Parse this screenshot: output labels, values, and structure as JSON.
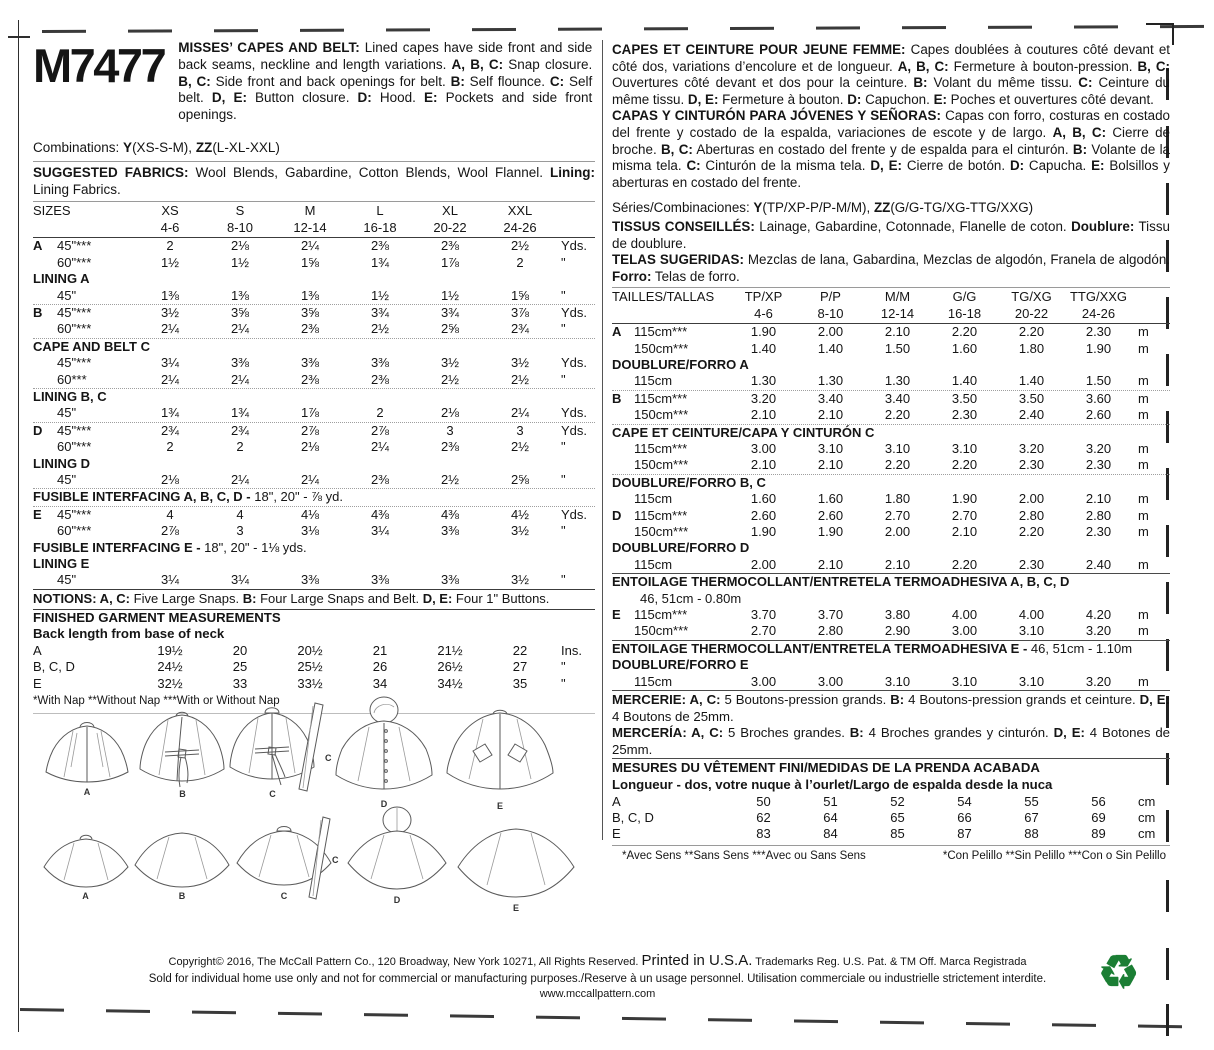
{
  "colors": {
    "recycle_green": "#1b7e34",
    "ink": "#151515"
  },
  "left": {
    "sku": "M7477",
    "header_desc": [
      {
        "b": "MISSES’ CAPES AND BELT:"
      },
      {
        "t": " Lined capes have side front and side back seams, neckline and length variations. "
      },
      {
        "b": "A, B, C:"
      },
      {
        "t": " Snap closure. "
      },
      {
        "b": "B, C:"
      },
      {
        "t": " Side front and back openings for belt. "
      },
      {
        "b": "B:"
      },
      {
        "t": " Self flounce. "
      },
      {
        "b": "C:"
      },
      {
        "t": " Self belt. "
      },
      {
        "b": "D, E:"
      },
      {
        "t": " Button closure. "
      },
      {
        "b": "D:"
      },
      {
        "t": " Hood. "
      },
      {
        "b": "E:"
      },
      {
        "t": " Pockets and side front openings."
      }
    ],
    "combinations": [
      {
        "t": "Combinations: "
      },
      {
        "b": "Y"
      },
      {
        "t": "(XS-S-M), "
      },
      {
        "b": "ZZ"
      },
      {
        "t": "(L-XL-XXL)"
      }
    ],
    "fabrics": [
      {
        "b": "SUGGESTED FABRICS:"
      },
      {
        "t": " Wool Blends, Gabardine, Cotton Blends, Wool Flannel. "
      },
      {
        "b": "Lining:"
      },
      {
        "t": " Lining Fabrics."
      }
    ],
    "table": {
      "header": {
        "title": "SIZES",
        "sizes": [
          "XS",
          "S",
          "M",
          "L",
          "XL",
          "XXL"
        ],
        "ranges": [
          "4-6",
          "8-10",
          "12-14",
          "16-18",
          "20-22",
          "24-26"
        ]
      },
      "rows": [
        {
          "k": "data",
          "letter": "A",
          "label": "45\"***",
          "v": [
            "2",
            "2⅛",
            "2¼",
            "2⅜",
            "2⅜",
            "2½"
          ],
          "unit": "Yds."
        },
        {
          "k": "data",
          "label": "60\"***",
          "v": [
            "1½",
            "1½",
            "1⅝",
            "1¾",
            "1⅞",
            "2"
          ],
          "unit": "\""
        },
        {
          "k": "sec",
          "rich": [
            {
              "b": "LINING A"
            }
          ]
        },
        {
          "k": "data",
          "label": "45\"",
          "v": [
            "1⅜",
            "1⅜",
            "1⅜",
            "1½",
            "1½",
            "1⅝"
          ],
          "unit": "\""
        },
        {
          "k": "data",
          "r": "l",
          "letter": "B",
          "label": "45\"***",
          "v": [
            "3½",
            "3⅝",
            "3⅝",
            "3¾",
            "3¾",
            "3⅞"
          ],
          "unit": "Yds."
        },
        {
          "k": "data",
          "label": "60\"***",
          "v": [
            "2¼",
            "2¼",
            "2⅜",
            "2½",
            "2⅝",
            "2¾"
          ],
          "unit": "\""
        },
        {
          "k": "sec",
          "r": "l",
          "rich": [
            {
              "b": "CAPE AND BELT C"
            }
          ]
        },
        {
          "k": "data",
          "label": "45\"***",
          "v": [
            "3¼",
            "3⅜",
            "3⅜",
            "3⅜",
            "3½",
            "3½"
          ],
          "unit": "Yds."
        },
        {
          "k": "data",
          "label": "60***",
          "v": [
            "2¼",
            "2¼",
            "2⅜",
            "2⅜",
            "2½",
            "2½"
          ],
          "unit": "\""
        },
        {
          "k": "sec",
          "r": "l",
          "rich": [
            {
              "b": "LINING B, C"
            }
          ]
        },
        {
          "k": "data",
          "label": "45\"",
          "v": [
            "1¾",
            "1¾",
            "1⅞",
            "2",
            "2⅛",
            "2¼"
          ],
          "unit": "Yds."
        },
        {
          "k": "data",
          "r": "l",
          "letter": "D",
          "label": "45\"***",
          "v": [
            "2¾",
            "2¾",
            "2⅞",
            "2⅞",
            "3",
            "3"
          ],
          "unit": "Yds."
        },
        {
          "k": "data",
          "label": "60\"***",
          "v": [
            "2",
            "2",
            "2⅛",
            "2¼",
            "2⅜",
            "2½"
          ],
          "unit": "\""
        },
        {
          "k": "sec",
          "rich": [
            {
              "b": "LINING D"
            }
          ]
        },
        {
          "k": "data",
          "label": "45\"",
          "v": [
            "2⅛",
            "2¼",
            "2¼",
            "2⅜",
            "2½",
            "2⅝"
          ],
          "unit": "\""
        },
        {
          "k": "sec",
          "r": "l",
          "rich": [
            {
              "b": "FUSIBLE INTERFACING A, B, C, D - "
            },
            {
              "t": "18\", 20\" - ⅞ yd."
            }
          ]
        },
        {
          "k": "data",
          "r": "l",
          "letter": "E",
          "label": "45\"***",
          "v": [
            "4",
            "4",
            "4⅛",
            "4⅜",
            "4⅜",
            "4½"
          ],
          "unit": "Yds."
        },
        {
          "k": "data",
          "label": "60\"***",
          "v": [
            "2⅞",
            "3",
            "3⅛",
            "3¼",
            "3⅜",
            "3½"
          ],
          "unit": "\""
        },
        {
          "k": "sec",
          "rich": [
            {
              "b": "FUSIBLE INTERFACING E - "
            },
            {
              "t": "18\", 20\" - 1⅛ yds."
            }
          ]
        },
        {
          "k": "sec",
          "rich": [
            {
              "b": "LINING E"
            }
          ]
        },
        {
          "k": "data",
          "label": "45\"",
          "v": [
            "3¼",
            "3¼",
            "3⅜",
            "3⅜",
            "3⅜",
            "3½"
          ],
          "unit": "\""
        }
      ]
    },
    "notions": [
      {
        "b": "NOTIONS: A, C:"
      },
      {
        "t": " Five Large Snaps. "
      },
      {
        "b": "B:"
      },
      {
        "t": " Four Large Snaps and Belt. "
      },
      {
        "b": "D, E:"
      },
      {
        "t": " Four 1\" Buttons."
      }
    ],
    "measurements": {
      "heading1": "FINISHED GARMENT MEASUREMENTS",
      "heading2": "Back length from base of neck",
      "rows": [
        {
          "label": "A",
          "v": [
            "19½",
            "20",
            "20½",
            "21",
            "21½",
            "22"
          ],
          "unit": "Ins."
        },
        {
          "label": "B, C, D",
          "v": [
            "24½",
            "25",
            "25½",
            "26",
            "26½",
            "27"
          ],
          "unit": "\""
        },
        {
          "label": "E",
          "v": [
            "32½",
            "33",
            "33½",
            "34",
            "34½",
            "35"
          ],
          "unit": "\""
        }
      ]
    },
    "footnote": "*With Nap **Without Nap ***With or Without Nap"
  },
  "right": {
    "desc_fr": [
      {
        "b": "CAPES ET CEINTURE POUR JEUNE FEMME:"
      },
      {
        "t": " Capes doublées à coutures côté devant et côté dos, variations d’encolure et de longueur. "
      },
      {
        "b": "A, B, C:"
      },
      {
        "t": " Fermeture à bouton-pression. "
      },
      {
        "b": "B, C:"
      },
      {
        "t": " Ouvertures côté devant et dos pour la ceinture. "
      },
      {
        "b": "B:"
      },
      {
        "t": " Volant du même tissu. "
      },
      {
        "b": "C:"
      },
      {
        "t": " Ceinture du même tissu. "
      },
      {
        "b": "D, E:"
      },
      {
        "t": " Fermeture à bouton. "
      },
      {
        "b": "D:"
      },
      {
        "t": " Capuchon. "
      },
      {
        "b": "E:"
      },
      {
        "t": " Poches et ouvertures côté devant."
      }
    ],
    "desc_es": [
      {
        "b": "CAPAS Y CINTURÓN PARA JÓVENES Y SEÑORAS:"
      },
      {
        "t": " Capas con forro, costuras en costado del frente y costado de la espalda, variaciones de escote y de largo. "
      },
      {
        "b": "A, B, C:"
      },
      {
        "t": " Cierre de broche. "
      },
      {
        "b": "B, C:"
      },
      {
        "t": " Aberturas en costado del frente y de espalda para el cinturón. "
      },
      {
        "b": "B:"
      },
      {
        "t": " Volante de la misma tela. "
      },
      {
        "b": "C:"
      },
      {
        "t": " Cinturón de la misma tela. "
      },
      {
        "b": "D, E:"
      },
      {
        "t": " Cierre de botón. "
      },
      {
        "b": "D:"
      },
      {
        "t": " Capucha. "
      },
      {
        "b": "E:"
      },
      {
        "t": " Bolsillos y aberturas en costado del frente."
      }
    ],
    "series": [
      {
        "t": "Séries/Combinaciones: "
      },
      {
        "b": "Y"
      },
      {
        "t": "(TP/XP-P/P-M/M), "
      },
      {
        "b": "ZZ"
      },
      {
        "t": "(G/G-TG/XG-TTG/XXG)"
      }
    ],
    "tissus": [
      {
        "b": "TISSUS CONSEILLÉS:"
      },
      {
        "t": " Lainage, Gabardine, Cotonnade, Flanelle de coton. "
      },
      {
        "b": "Doublure:"
      },
      {
        "t": " Tissu de doublure."
      }
    ],
    "telas": [
      {
        "b": "TELAS SUGERIDAS:"
      },
      {
        "t": " Mezclas de lana, Gabardina, Mezclas de algodón, Franela de algodón. "
      },
      {
        "b": "Forro:"
      },
      {
        "t": " Telas de forro."
      }
    ],
    "table": {
      "header": {
        "title": "TAILLES/TALLAS",
        "sizes": [
          "TP/XP",
          "P/P",
          "M/M",
          "G/G",
          "TG/XG",
          "TTG/XXG"
        ],
        "ranges": [
          "4-6",
          "8-10",
          "12-14",
          "16-18",
          "20-22",
          "24-26"
        ]
      },
      "rows": [
        {
          "k": "data",
          "letter": "A",
          "label": "115cm***",
          "v": [
            "1.90",
            "2.00",
            "2.10",
            "2.20",
            "2.20",
            "2.30"
          ],
          "unit": "m"
        },
        {
          "k": "data",
          "label": "150cm***",
          "v": [
            "1.40",
            "1.40",
            "1.50",
            "1.60",
            "1.80",
            "1.90"
          ],
          "unit": "m"
        },
        {
          "k": "sec",
          "rich": [
            {
              "b": "DOUBLURE/FORRO A"
            }
          ]
        },
        {
          "k": "data",
          "label": "115cm",
          "v": [
            "1.30",
            "1.30",
            "1.30",
            "1.40",
            "1.40",
            "1.50"
          ],
          "unit": "m"
        },
        {
          "k": "data",
          "r": "l",
          "letter": "B",
          "label": "115cm***",
          "v": [
            "3.20",
            "3.40",
            "3.40",
            "3.50",
            "3.50",
            "3.60"
          ],
          "unit": "m"
        },
        {
          "k": "data",
          "label": "150cm***",
          "v": [
            "2.10",
            "2.10",
            "2.20",
            "2.30",
            "2.40",
            "2.60"
          ],
          "unit": "m"
        },
        {
          "k": "sec",
          "r": "l",
          "rich": [
            {
              "b": "CAPE ET CEINTURE/CAPA Y CINTURÓN C"
            }
          ]
        },
        {
          "k": "data",
          "label": "115cm***",
          "v": [
            "3.00",
            "3.10",
            "3.10",
            "3.10",
            "3.20",
            "3.20"
          ],
          "unit": "m"
        },
        {
          "k": "data",
          "label": "150cm***",
          "v": [
            "2.10",
            "2.10",
            "2.20",
            "2.20",
            "2.30",
            "2.30"
          ],
          "unit": "m"
        },
        {
          "k": "sec",
          "r": "l",
          "rich": [
            {
              "b": "DOUBLURE/FORRO B, C"
            }
          ]
        },
        {
          "k": "data",
          "label": "115cm",
          "v": [
            "1.60",
            "1.60",
            "1.80",
            "1.90",
            "2.00",
            "2.10"
          ],
          "unit": "m"
        },
        {
          "k": "data",
          "letter": "D",
          "label": "115cm***",
          "v": [
            "2.60",
            "2.60",
            "2.70",
            "2.70",
            "2.80",
            "2.80"
          ],
          "unit": "m"
        },
        {
          "k": "data",
          "label": "150cm***",
          "v": [
            "1.90",
            "1.90",
            "2.00",
            "2.10",
            "2.20",
            "2.30"
          ],
          "unit": "m"
        },
        {
          "k": "sec",
          "rich": [
            {
              "b": "DOUBLURE/FORRO D"
            }
          ]
        },
        {
          "k": "data",
          "label": "115cm",
          "v": [
            "2.00",
            "2.10",
            "2.10",
            "2.20",
            "2.30",
            "2.40"
          ],
          "unit": "m"
        },
        {
          "k": "sec",
          "r": "d",
          "rich": [
            {
              "b": "ENTOILAGE THERMOCOLLANT/ENTRETELA TERMOADHESIVA A, B, C, D"
            }
          ]
        },
        {
          "k": "sub",
          "t": "46, 51cm - 0.80m"
        },
        {
          "k": "data",
          "letter": "E",
          "label": "115cm***",
          "v": [
            "3.70",
            "3.70",
            "3.80",
            "4.00",
            "4.00",
            "4.20"
          ],
          "unit": "m"
        },
        {
          "k": "data",
          "label": "150cm***",
          "v": [
            "2.70",
            "2.80",
            "2.90",
            "3.00",
            "3.10",
            "3.20"
          ],
          "unit": "m"
        },
        {
          "k": "sec",
          "r": "d",
          "rich": [
            {
              "b": "ENTOILAGE THERMOCOLLANT/ENTRETELA TERMOADHESIVA E - "
            },
            {
              "t": "46, 51cm - 1.10m"
            }
          ]
        },
        {
          "k": "sec",
          "rich": [
            {
              "b": "DOUBLURE/FORRO E"
            }
          ]
        },
        {
          "k": "data",
          "label": "115cm",
          "v": [
            "3.00",
            "3.00",
            "3.10",
            "3.10",
            "3.10",
            "3.20"
          ],
          "unit": "m"
        }
      ]
    },
    "mercerie": [
      {
        "b": "MERCERIE: A, C:"
      },
      {
        "t": " 5 Boutons-pression grands. "
      },
      {
        "b": "B:"
      },
      {
        "t": " 4 Boutons-pression grands et ceinture. "
      },
      {
        "b": "D, E:"
      },
      {
        "t": " 4 Boutons de 25mm."
      }
    ],
    "merceria": [
      {
        "b": "MERCERÍA: A, C:"
      },
      {
        "t": " 5 Broches grandes. "
      },
      {
        "b": "B:"
      },
      {
        "t": " 4 Broches grandes y cinturón. "
      },
      {
        "b": "D, E:"
      },
      {
        "t": " 4 Botones de 25mm."
      }
    ],
    "measurements": {
      "heading1": "MESURES DU VÊTEMENT FINI/MEDIDAS DE LA PRENDA ACABADA",
      "heading2": "Longueur - dos, votre nuque à l’ourlet/Largo de espalda desde la nuca",
      "rows": [
        {
          "label": "A",
          "v": [
            "50",
            "51",
            "52",
            "54",
            "55",
            "56"
          ],
          "unit": "cm"
        },
        {
          "label": "B, C, D",
          "v": [
            "62",
            "64",
            "65",
            "66",
            "67",
            "69"
          ],
          "unit": "cm"
        },
        {
          "label": "E",
          "v": [
            "83",
            "84",
            "85",
            "87",
            "88",
            "89"
          ],
          "unit": "cm"
        }
      ]
    },
    "footnote_fr": "*Avec Sens **Sans Sens ***Avec ou Sans Sens",
    "footnote_es": "*Con Pelillo **Sin Pelillo ***Con o Sin Pelillo"
  },
  "drawings": {
    "front_labels": [
      "A",
      "B",
      "C",
      "C",
      "D",
      "E"
    ],
    "back_labels": [
      "A",
      "B",
      "C",
      "C",
      "D",
      "E"
    ]
  },
  "footer": {
    "line1_left": "Copyright© 2016,  The McCall Pattern Co., 120 Broadway, New York 10271, All Rights Reserved.",
    "line1_big": "Printed in U.S.A.",
    "line1_right": "Trademarks Reg. U.S. Pat. & TM Off. Marca Registrada",
    "line2": "Sold for individual home use only and not for commercial or manufacturing purposes./Reserve à un usage personnel. Utilisation commerciale ou industrielle strictement interdite.",
    "line3": "www.mccallpattern.com",
    "recycle_icon": "♻"
  }
}
